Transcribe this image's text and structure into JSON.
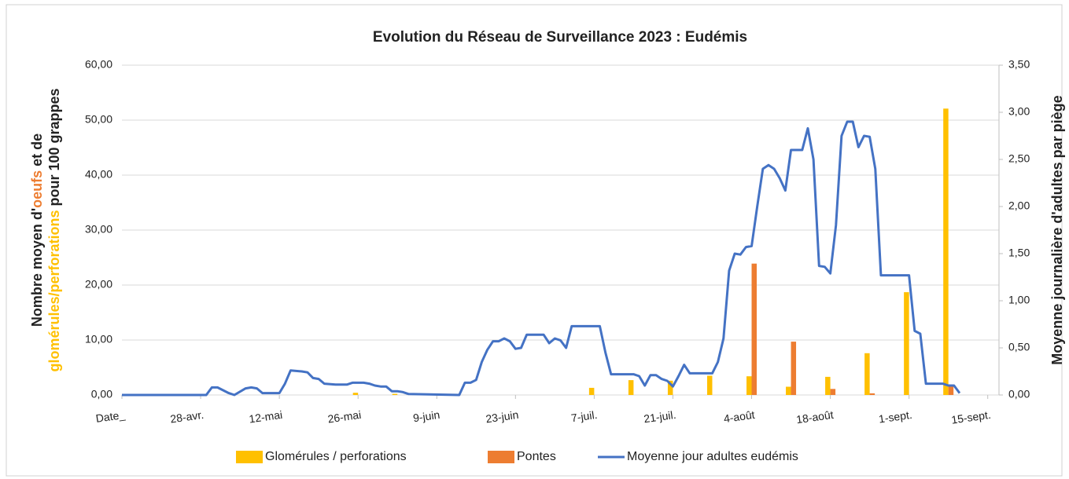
{
  "chart_data": {
    "type": "bar",
    "title": "Evolution du Réseau de Surveillance 2023 : Eudémis",
    "ylabel_parts": [
      [
        {
          "text": "Nombre moyen d'",
          "color": "#222222"
        },
        {
          "text": "oeufs",
          "color": "#ed7d31"
        },
        {
          "text": " et de",
          "color": "#222222"
        }
      ],
      [
        {
          "text": "glomérules/perforations",
          "color": "#ffc000"
        },
        {
          "text": " pour 100 grappes",
          "color": "#222222"
        }
      ]
    ],
    "y2label": {
      "text": "Moyenne journalière d'adultes par piège",
      "color": "#5b9bd5"
    },
    "xlim": [
      0,
      156
    ],
    "xticks": [
      {
        "value": 0,
        "label": "Date_"
      },
      {
        "value": 14,
        "label": "28-avr."
      },
      {
        "value": 28,
        "label": "12-mai"
      },
      {
        "value": 42,
        "label": "26-mai"
      },
      {
        "value": 56,
        "label": "9-juin"
      },
      {
        "value": 70,
        "label": "23-juin"
      },
      {
        "value": 84,
        "label": "7-juil."
      },
      {
        "value": 98,
        "label": "21-juil."
      },
      {
        "value": 112,
        "label": "4-août"
      },
      {
        "value": 126,
        "label": "18-août"
      },
      {
        "value": 140,
        "label": "1-sept."
      },
      {
        "value": 154,
        "label": "15-sept."
      }
    ],
    "ylim": [
      0,
      60
    ],
    "yticks": [
      {
        "value": 0,
        "label": "0,00"
      },
      {
        "value": 10,
        "label": "10,00"
      },
      {
        "value": 20,
        "label": "20,00"
      },
      {
        "value": 30,
        "label": "30,00"
      },
      {
        "value": 40,
        "label": "40,00"
      },
      {
        "value": 50,
        "label": "50,00"
      },
      {
        "value": 60,
        "label": "60,00"
      }
    ],
    "y2lim": [
      0,
      3.5
    ],
    "y2ticks": [
      {
        "value": 0,
        "label": "0,00"
      },
      {
        "value": 0.5,
        "label": "0,50"
      },
      {
        "value": 1,
        "label": "1,00"
      },
      {
        "value": 1.5,
        "label": "1,50"
      },
      {
        "value": 2,
        "label": "2,00"
      },
      {
        "value": 2.5,
        "label": "2,50"
      },
      {
        "value": 3,
        "label": "3,00"
      },
      {
        "value": 3.5,
        "label": "3,50"
      }
    ],
    "grid": true,
    "legend": "bottom",
    "series": [
      {
        "name": "Glomérules / perforations",
        "type": "bar",
        "color": "#ffc000",
        "x": [
          42,
          49,
          84,
          91,
          98,
          105,
          112,
          119,
          126,
          133,
          140,
          147
        ],
        "values": [
          0.4,
          0.2,
          1.3,
          2.7,
          2.6,
          3.5,
          3.4,
          1.5,
          3.3,
          7.6,
          18.7,
          52.1
        ]
      },
      {
        "name": "Pontes",
        "type": "bar",
        "color": "#ed7d31",
        "x": [
          42,
          49,
          84,
          91,
          98,
          105,
          112,
          119,
          126,
          133,
          140,
          147
        ],
        "values": [
          0,
          0,
          0,
          0,
          0,
          0,
          23.9,
          9.7,
          1.1,
          0.3,
          0,
          1.5
        ]
      },
      {
        "name": "Moyenne jour adultes eudémis",
        "type": "line",
        "axis": "y2",
        "color": "#4472c4",
        "x": [
          0,
          15,
          16,
          17,
          19,
          20,
          22,
          23,
          24,
          25,
          28,
          29,
          30,
          32,
          33,
          34,
          35,
          36,
          38,
          40,
          41,
          43,
          44,
          45,
          46,
          47,
          48,
          49,
          50,
          51,
          60,
          61,
          62,
          63,
          64,
          65,
          66,
          67,
          68,
          69,
          70,
          71,
          72,
          74,
          75,
          76,
          77,
          78,
          79,
          80,
          84,
          85,
          86,
          87,
          91,
          92,
          93,
          94,
          95,
          96,
          97,
          98,
          99,
          100,
          101,
          105,
          106,
          107,
          108,
          109,
          110,
          111,
          112,
          113,
          114,
          115,
          116,
          117,
          118,
          119,
          121,
          122,
          123,
          124,
          125,
          126,
          127,
          128,
          129,
          130,
          131,
          132,
          133,
          134,
          135,
          140,
          141,
          142,
          143,
          146,
          147,
          148,
          149
        ],
        "values": [
          0,
          0,
          0.08,
          0.08,
          0.02,
          0,
          0.07,
          0.08,
          0.07,
          0.02,
          0.02,
          0.12,
          0.26,
          0.25,
          0.24,
          0.18,
          0.17,
          0.12,
          0.11,
          0.11,
          0.13,
          0.13,
          0.12,
          0.1,
          0.09,
          0.09,
          0.04,
          0.04,
          0.03,
          0.01,
          0,
          0.13,
          0.13,
          0.16,
          0.35,
          0.48,
          0.57,
          0.57,
          0.6,
          0.57,
          0.49,
          0.5,
          0.64,
          0.64,
          0.64,
          0.55,
          0.6,
          0.58,
          0.5,
          0.73,
          0.73,
          0.73,
          0.45,
          0.22,
          0.22,
          0.2,
          0.1,
          0.21,
          0.21,
          0.17,
          0.15,
          0.09,
          0.2,
          0.32,
          0.23,
          0.23,
          0.35,
          0.6,
          1.32,
          1.5,
          1.49,
          1.57,
          1.58,
          2.0,
          2.4,
          2.44,
          2.4,
          2.3,
          2.17,
          2.6,
          2.6,
          2.83,
          2.5,
          1.37,
          1.36,
          1.29,
          1.8,
          2.75,
          2.9,
          2.9,
          2.63,
          2.75,
          2.74,
          2.4,
          1.27,
          1.27,
          0.68,
          0.65,
          0.12,
          0.12,
          0.1,
          0.1,
          0.02
        ]
      }
    ]
  }
}
